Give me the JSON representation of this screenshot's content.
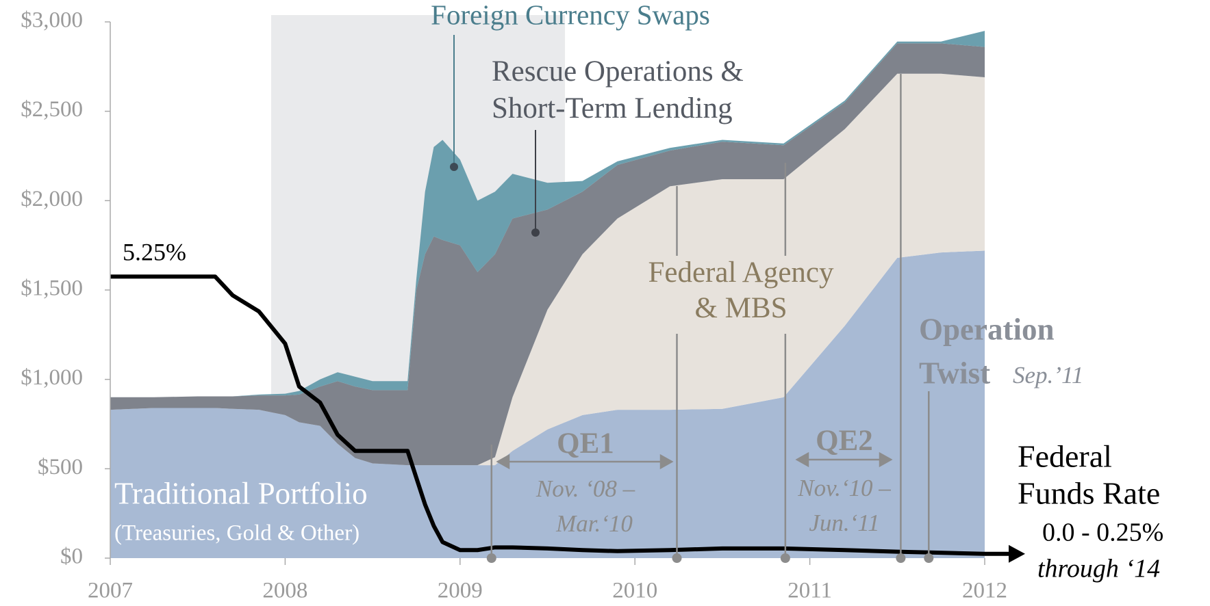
{
  "chart_data": {
    "type": "area",
    "x": [
      2007,
      2007.25,
      2007.5,
      2007.6,
      2007.7,
      2007.85,
      2008.0,
      2008.08,
      2008.2,
      2008.3,
      2008.4,
      2008.5,
      2008.7,
      2008.75,
      2008.8,
      2008.85,
      2008.9,
      2009.0,
      2009.1,
      2009.2,
      2009.3,
      2009.5,
      2009.7,
      2009.9,
      2010.2,
      2010.5,
      2010.85,
      2011.2,
      2011.5,
      2011.75,
      2012
    ],
    "series": [
      {
        "color": "#a8bad4",
        "values": [
          830,
          840,
          840,
          840,
          835,
          830,
          800,
          760,
          740,
          640,
          560,
          530,
          520,
          520,
          520,
          520,
          520,
          520,
          520,
          520,
          600,
          720,
          800,
          830,
          830,
          835,
          900,
          1300,
          1680,
          1710,
          1720
        ]
      },
      {
        "color": "#e7e2dc",
        "values": [
          0,
          0,
          0,
          0,
          0,
          0,
          0,
          0,
          0,
          0,
          0,
          0,
          0,
          0,
          0,
          0,
          0,
          0,
          0,
          45,
          300,
          670,
          900,
          1070,
          1250,
          1285,
          1220,
          1100,
          1030,
          1000,
          970
        ]
      },
      {
        "color": "#7f838c",
        "values": [
          70,
          60,
          65,
          65,
          70,
          80,
          110,
          155,
          220,
          350,
          400,
          410,
          420,
          980,
          1180,
          1280,
          1260,
          1230,
          1080,
          1135,
          1000,
          560,
          350,
          300,
          200,
          210,
          190,
          150,
          170,
          170,
          170
        ]
      },
      {
        "color": "#6b9fae",
        "values": [
          0,
          0,
          0,
          0,
          0,
          5,
          10,
          20,
          40,
          50,
          55,
          50,
          50,
          60,
          350,
          500,
          560,
          480,
          400,
          350,
          250,
          150,
          60,
          20,
          15,
          10,
          10,
          10,
          10,
          10,
          90
        ]
      },
      {
        "color": "#000000",
        "axis": "y2",
        "values": [
          5.25,
          5.25,
          5.25,
          5.25,
          4.9,
          4.6,
          4.0,
          3.2,
          2.9,
          2.3,
          2.0,
          2.0,
          2.0,
          1.5,
          1.0,
          0.6,
          0.3,
          0.15,
          0.15,
          0.2,
          0.2,
          0.18,
          0.15,
          0.13,
          0.15,
          0.18,
          0.18,
          0.15,
          0.12,
          0.1,
          0.08
        ]
      }
    ],
    "xlim": [
      2007,
      2012
    ],
    "xticks": [
      2007,
      2008,
      2009,
      2010,
      2011,
      2012
    ],
    "ylim": [
      0,
      3000
    ],
    "yticks": [
      {
        "value": 0,
        "label": "$0"
      },
      {
        "value": 500,
        "label": "$500"
      },
      {
        "value": 1000,
        "label": "$1,000"
      },
      {
        "value": 1500,
        "label": "$1,500"
      },
      {
        "value": 2000,
        "label": "$2,000"
      },
      {
        "value": 2500,
        "label": "$2,500"
      },
      {
        "value": 3000,
        "label": "$3,000"
      }
    ],
    "y2lim": [
      0,
      10
    ],
    "shade": [
      2007.92,
      2009.6
    ],
    "shade_color": "#e9eaec",
    "markers": [
      2009.18,
      2010.24,
      2010.86,
      2011.52,
      2011.68
    ],
    "marker_color": "#8c8c8c",
    "annotations": [
      "Foreign Currency Swaps",
      "Rescue Operations &",
      "Short-Term Lending",
      "Federal Agency",
      "& MBS",
      "Traditional Portfolio",
      "(Treasuries, Gold & Other)",
      "5.25%",
      "QE1",
      "Nov. ‘08 –",
      "Mar.‘10",
      "QE2",
      "Nov.‘10 –",
      "Jun.‘11",
      "Operation",
      "Twist",
      "Sep.’11",
      "Federal",
      "Funds Rate",
      "0.0 - 0.25%",
      "through ‘14"
    ],
    "grid": false
  }
}
